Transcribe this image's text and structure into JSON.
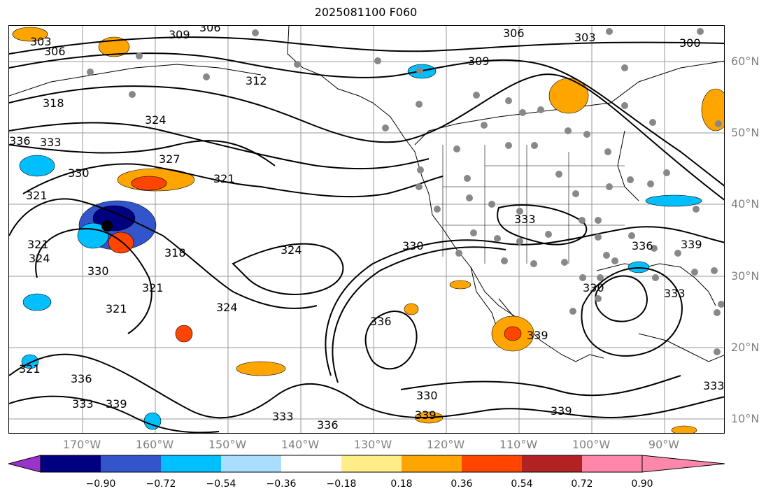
{
  "title": "2025081100 F060",
  "lat_labels": [
    "60°N",
    "50°N",
    "40°N",
    "30°N",
    "20°N",
    "10°N"
  ],
  "lon_labels": [
    "170°W",
    "160°W",
    "150°W",
    "140°W",
    "130°W",
    "120°W",
    "110°W",
    "100°W",
    "90°W"
  ],
  "contour_labels": [
    "303",
    "306",
    "309",
    "306",
    "306",
    "303",
    "300",
    "309",
    "312",
    "318",
    "324",
    "336",
    "333",
    "327",
    "330",
    "321",
    "321",
    "321",
    "324",
    "318",
    "330",
    "324",
    "324",
    "321",
    "321",
    "330",
    "333",
    "336",
    "330",
    "333",
    "339",
    "321",
    "336",
    "339",
    "333",
    "336",
    "339",
    "330",
    "339",
    "339",
    "333",
    "336",
    "333"
  ],
  "colorbar": {
    "ticks": [
      "−0.90",
      "−0.72",
      "−0.54",
      "−0.36",
      "−0.18",
      "0.18",
      "0.36",
      "0.54",
      "0.72",
      "0.90"
    ],
    "colors": [
      "#9933cc",
      "#000080",
      "#3355cc",
      "#00bfff",
      "#aaddff",
      "#ffffff",
      "#ffee88",
      "#ffa500",
      "#ff4500",
      "#b22222",
      "#ff88aa"
    ]
  },
  "colors": {
    "contour": "#000000",
    "grid": "#999999",
    "land": "#aaaaaa",
    "axis_label": "#808080"
  }
}
